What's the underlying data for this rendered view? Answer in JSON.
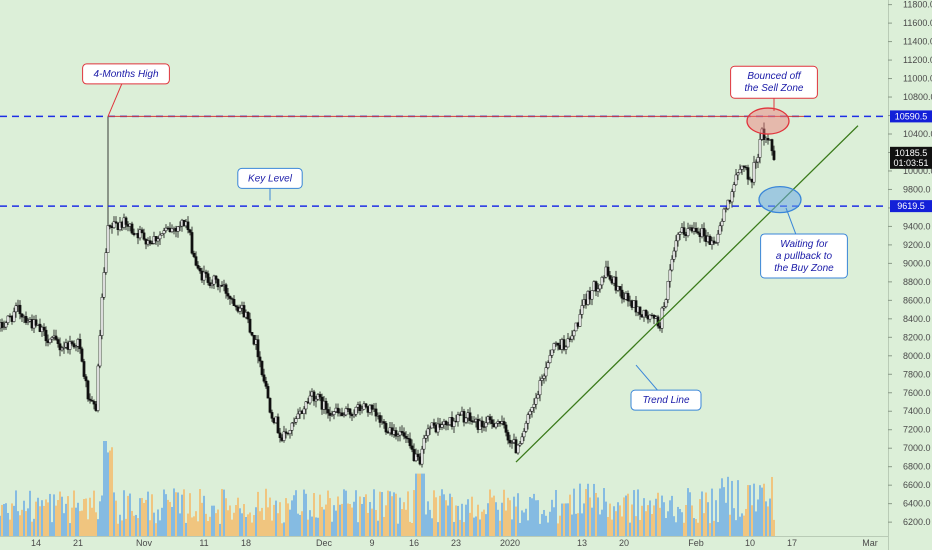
{
  "chart_data": {
    "type": "candlestick",
    "title": "",
    "xlabel": "",
    "ylabel": "",
    "ylim": [
      6050,
      11850
    ],
    "y_ticks": [
      6200,
      6400,
      6600,
      6800,
      7000,
      7200,
      7400,
      7600,
      7800,
      8000,
      8200,
      8400,
      8600,
      8800,
      9000,
      9200,
      9400,
      9600,
      9800,
      10000,
      10200,
      10400,
      10600,
      10800,
      11000,
      11200,
      11400,
      11600,
      11800
    ],
    "y_tick_labels": [
      "6200.0",
      "6400.0",
      "6600.0",
      "6800.0",
      "7000.0",
      "7200.0",
      "7400.0",
      "7600.0",
      "7800.0",
      "8000.0",
      "8200.0",
      "8400.0",
      "8600.0",
      "8800.0",
      "9000.0",
      "9200.0",
      "9400.0",
      "9600.0",
      "9800.0",
      "10000.0",
      "10200.0",
      "10400.0",
      "10600.0",
      "10800.0",
      "11000.0",
      "11200.0",
      "11400.0",
      "11600.0",
      "11800.0"
    ],
    "x_ticks": [
      {
        "label": "14",
        "x": "2019-10-14"
      },
      {
        "label": "21",
        "x": "2019-10-21"
      },
      {
        "label": "Nov",
        "x": "2019-11-01"
      },
      {
        "label": "11",
        "x": "2019-11-11"
      },
      {
        "label": "18",
        "x": "2019-11-18"
      },
      {
        "label": "Dec",
        "x": "2019-12-01"
      },
      {
        "label": "9",
        "x": "2019-12-09"
      },
      {
        "label": "16",
        "x": "2019-12-16"
      },
      {
        "label": "23",
        "x": "2019-12-23"
      },
      {
        "label": "2020",
        "x": "2020-01-01"
      },
      {
        "label": "13",
        "x": "2020-01-13"
      },
      {
        "label": "20",
        "x": "2020-01-20"
      },
      {
        "label": "Feb",
        "x": "2020-02-01"
      },
      {
        "label": "10",
        "x": "2020-02-10"
      },
      {
        "label": "17",
        "x": "2020-02-17"
      },
      {
        "label": "Mar",
        "x": "2020-03-01"
      }
    ],
    "x_range": [
      "2019-10-08",
      "2020-03-04"
    ],
    "price_path": [
      {
        "x": "2019-10-08",
        "y": 8300
      },
      {
        "x": "2019-10-11",
        "y": 8500
      },
      {
        "x": "2019-10-15",
        "y": 8250
      },
      {
        "x": "2019-10-18",
        "y": 8100
      },
      {
        "x": "2019-10-21",
        "y": 8150
      },
      {
        "x": "2019-10-23",
        "y": 7450
      },
      {
        "x": "2019-10-24",
        "y": 7450
      },
      {
        "x": "2019-10-25",
        "y": 8600
      },
      {
        "x": "2019-10-26",
        "y": 9350
      },
      {
        "x": "2019-10-28",
        "y": 9450
      },
      {
        "x": "2019-11-02",
        "y": 9250
      },
      {
        "x": "2019-11-05",
        "y": 9350
      },
      {
        "x": "2019-11-08",
        "y": 9450
      },
      {
        "x": "2019-11-10",
        "y": 8900
      },
      {
        "x": "2019-11-14",
        "y": 8750
      },
      {
        "x": "2019-11-18",
        "y": 8450
      },
      {
        "x": "2019-11-20",
        "y": 8050
      },
      {
        "x": "2019-11-22",
        "y": 7450
      },
      {
        "x": "2019-11-24",
        "y": 7100
      },
      {
        "x": "2019-11-26",
        "y": 7250
      },
      {
        "x": "2019-11-29",
        "y": 7600
      },
      {
        "x": "2019-12-01",
        "y": 7450
      },
      {
        "x": "2019-12-04",
        "y": 7350
      },
      {
        "x": "2019-12-08",
        "y": 7450
      },
      {
        "x": "2019-12-11",
        "y": 7250
      },
      {
        "x": "2019-12-14",
        "y": 7150
      },
      {
        "x": "2019-12-17",
        "y": 6800
      },
      {
        "x": "2019-12-18",
        "y": 7200
      },
      {
        "x": "2019-12-21",
        "y": 7250
      },
      {
        "x": "2019-12-24",
        "y": 7350
      },
      {
        "x": "2019-12-27",
        "y": 7250
      },
      {
        "x": "2019-12-30",
        "y": 7300
      },
      {
        "x": "2020-01-02",
        "y": 7000
      },
      {
        "x": "2020-01-05",
        "y": 7450
      },
      {
        "x": "2020-01-08",
        "y": 8100
      },
      {
        "x": "2020-01-11",
        "y": 8150
      },
      {
        "x": "2020-01-14",
        "y": 8650
      },
      {
        "x": "2020-01-17",
        "y": 8900
      },
      {
        "x": "2020-01-20",
        "y": 8650
      },
      {
        "x": "2020-01-23",
        "y": 8450
      },
      {
        "x": "2020-01-26",
        "y": 8350
      },
      {
        "x": "2020-01-29",
        "y": 9300
      },
      {
        "x": "2020-02-01",
        "y": 9400
      },
      {
        "x": "2020-02-04",
        "y": 9200
      },
      {
        "x": "2020-02-07",
        "y": 9800
      },
      {
        "x": "2020-02-09",
        "y": 10100
      },
      {
        "x": "2020-02-10",
        "y": 9850
      },
      {
        "x": "2020-02-12",
        "y": 10400
      },
      {
        "x": "2020-02-13",
        "y": 10350
      },
      {
        "x": "2020-02-14",
        "y": 10185.5
      }
    ],
    "high_spike": {
      "x": "2019-10-26",
      "y": 10590.5
    },
    "horizontal_levels": [
      {
        "value": 10590.5,
        "label": "10590.5",
        "style": "dashed",
        "color": "#1e2ee6"
      },
      {
        "value": 9619.5,
        "label": "9619.5",
        "style": "dashed",
        "color": "#1e2ee6"
      }
    ],
    "current_price": {
      "value": 10185.5,
      "label": "10185.5",
      "countdown": "01:03:51"
    },
    "trend_line": {
      "start": {
        "x": "2020-01-02",
        "y": 6850
      },
      "end": {
        "x": "2020-02-28",
        "y": 10490
      },
      "color": "#3a7a1a"
    },
    "zones": [
      {
        "name": "sell",
        "x": "2020-02-13",
        "y": 10540,
        "color": "#e0343c"
      },
      {
        "name": "buy",
        "x": "2020-02-15",
        "y": 9690,
        "color": "#3a86d8"
      }
    ],
    "volume_note": "volume bars",
    "annotations": [
      {
        "id": "four-months-high",
        "lines": [
          "4-Months High"
        ],
        "x": "2019-10-29",
        "y": 11050,
        "color": "#e0343c"
      },
      {
        "id": "bounced-sell-zone",
        "lines": [
          "Bounced off",
          "the Sell Zone"
        ],
        "x": "2020-02-14",
        "y": 10960,
        "color": "#e0343c"
      },
      {
        "id": "key-level",
        "lines": [
          "Key Level"
        ],
        "x": "2019-11-22",
        "y": 9920,
        "color": "#3a86d8"
      },
      {
        "id": "waiting-pullback",
        "lines": [
          "Waiting for",
          "a pullback to",
          "the Buy Zone"
        ],
        "x": "2020-02-19",
        "y": 9080,
        "color": "#3a86d8"
      },
      {
        "id": "trend-line",
        "lines": [
          "Trend Line"
        ],
        "x": "2020-01-27",
        "y": 7520,
        "color": "#3a86d8"
      }
    ]
  }
}
